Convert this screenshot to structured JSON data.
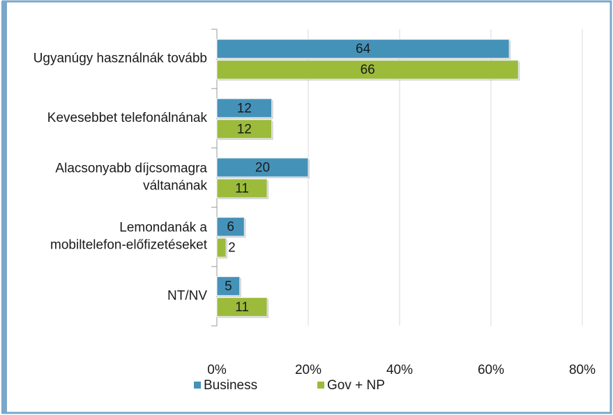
{
  "chart_data": {
    "type": "bar",
    "orientation": "horizontal",
    "categories": [
      "Ugyanúgy használnák tovább",
      "Kevesebbet telefonálnának",
      "Alacsonyabb díjcsomagra váltanának",
      "Lemondanák a mobiltelefon-előfizetéseket",
      "NT/NV"
    ],
    "series": [
      {
        "name": "Business",
        "color": "#4592b9",
        "values": [
          64,
          12,
          20,
          6,
          5
        ]
      },
      {
        "name": "Gov + NP",
        "color": "#9cbb3b",
        "values": [
          66,
          12,
          11,
          2,
          11
        ]
      }
    ],
    "xlim": [
      0,
      80
    ],
    "xticks": [
      {
        "value": 0,
        "label": "0%"
      },
      {
        "value": 20,
        "label": "20%"
      },
      {
        "value": 40,
        "label": "40%"
      },
      {
        "value": 60,
        "label": "60%"
      },
      {
        "value": 80,
        "label": "80%"
      }
    ],
    "grid": true,
    "legend": "bottom"
  }
}
